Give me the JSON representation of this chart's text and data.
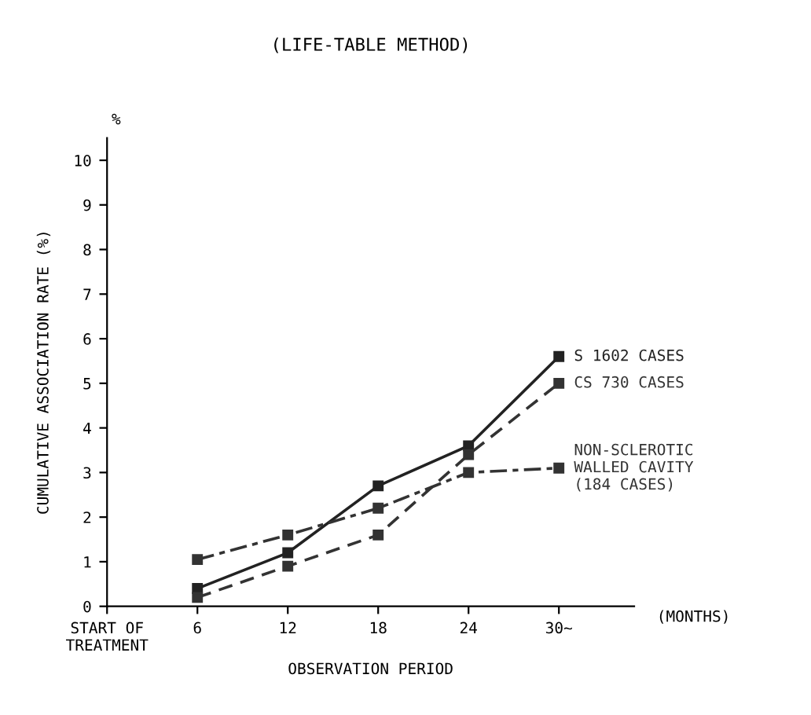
{
  "chart_data": {
    "type": "line",
    "title": "(LIFE-TABLE METHOD)",
    "xlabel": "OBSERVATION PERIOD",
    "ylabel": "CUMULATIVE ASSOCIATION RATE (%)",
    "annotations": [
      "%",
      "(MONTHS)"
    ],
    "x": [
      6,
      12,
      18,
      24,
      30
    ],
    "series": [
      {
        "name": "S 1602 CASES",
        "color": "#222222",
        "line_style": "solid",
        "values": [
          0.4,
          1.2,
          2.7,
          3.6,
          5.6
        ]
      },
      {
        "name": "CS 730 CASES",
        "color": "#333333",
        "line_style": "dashed",
        "values": [
          0.2,
          0.9,
          1.6,
          3.4,
          5.0
        ]
      },
      {
        "name": "NON-SCLEROTIC\nWALLED CAVITY\n(184 CASES)",
        "color": "#333333",
        "line_style": "dashed",
        "values": [
          1.05,
          1.6,
          2.2,
          3.0,
          3.1
        ]
      }
    ],
    "xlim": [
      0,
      35
    ],
    "ylim": [
      0,
      10.5
    ],
    "xticks": [
      {
        "value": 0,
        "label": "START OF\nTREATMENT"
      },
      6,
      12,
      18,
      24,
      {
        "value": 30,
        "label": "30~"
      }
    ],
    "yticks": [
      0,
      1,
      2,
      3,
      4,
      5,
      6,
      7,
      8,
      9,
      10
    ],
    "marker": "square",
    "grid": false,
    "legend": false
  }
}
